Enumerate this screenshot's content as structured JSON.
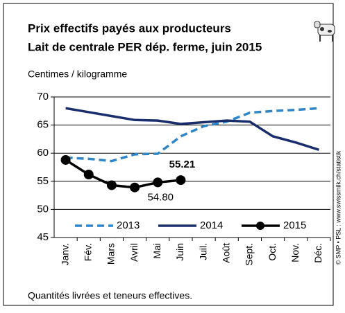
{
  "chart_data": {
    "type": "line",
    "title": "Prix effectifs payés aux producteurs",
    "subtitle": "Lait de centrale PER dép. ferme, juin 2015",
    "y_label": "Centimes / kilogramme",
    "footnote": "Quantités livrées et teneurs effectives.",
    "source": "© SMP • PSL : www.swissmilk.ch/statistik",
    "categories": [
      "Janv.",
      "Fév.",
      "Mars",
      "Avril",
      "Mai",
      "Juin",
      "Juil.",
      "Août",
      "Sept.",
      "Oct.",
      "Nov.",
      "Déc."
    ],
    "series": [
      {
        "name": "2013",
        "color": "#2e86c8",
        "style": "dashed",
        "values": [
          59.2,
          59.0,
          58.6,
          59.8,
          59.9,
          63.0,
          64.8,
          65.6,
          67.2,
          67.5,
          67.7,
          68.0
        ]
      },
      {
        "name": "2014",
        "color": "#1a2e6e",
        "style": "solid",
        "values": [
          68.0,
          67.3,
          66.6,
          65.9,
          65.8,
          65.2,
          65.5,
          65.8,
          65.6,
          63.0,
          61.9,
          60.6
        ]
      },
      {
        "name": "2015",
        "color": "#000000",
        "style": "markers",
        "values": [
          58.8,
          56.2,
          54.3,
          53.9,
          54.8,
          55.21,
          null,
          null,
          null,
          null,
          null,
          null
        ],
        "value_labels": [
          null,
          null,
          null,
          null,
          "54.80",
          "55.21",
          null,
          null,
          null,
          null,
          null,
          null
        ]
      }
    ],
    "ylim": [
      45,
      70
    ],
    "yticks": [
      45,
      50,
      55,
      60,
      65,
      70
    ],
    "grid": true,
    "legend": "lower center"
  }
}
